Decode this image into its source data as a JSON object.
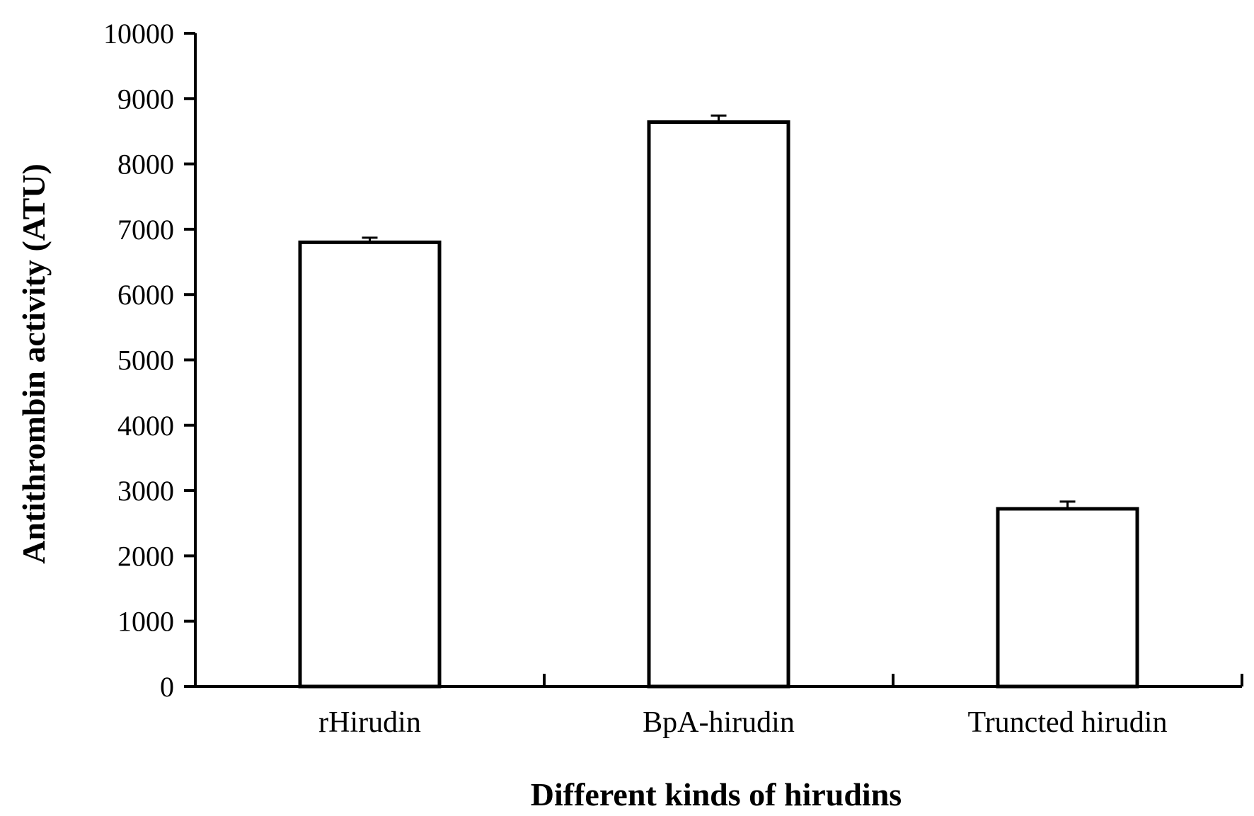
{
  "chart_data": {
    "type": "bar",
    "title": "",
    "xlabel": "Different kinds of hirudins",
    "ylabel": "Antithrombin activity (ATU)",
    "categories": [
      "rHirudin",
      "BpA-hirudin",
      "Truncted hirudin"
    ],
    "series": [
      {
        "values": [
          6800,
          8640,
          2720
        ],
        "error": [
          70,
          100,
          110
        ]
      }
    ],
    "ylim": [
      0,
      10000
    ],
    "yticks": [
      0,
      1000,
      2000,
      3000,
      4000,
      5000,
      6000,
      7000,
      8000,
      9000,
      10000
    ],
    "grid": false,
    "legend": "none",
    "bar_fill": "#ffffff",
    "bar_edge": "#000000"
  }
}
